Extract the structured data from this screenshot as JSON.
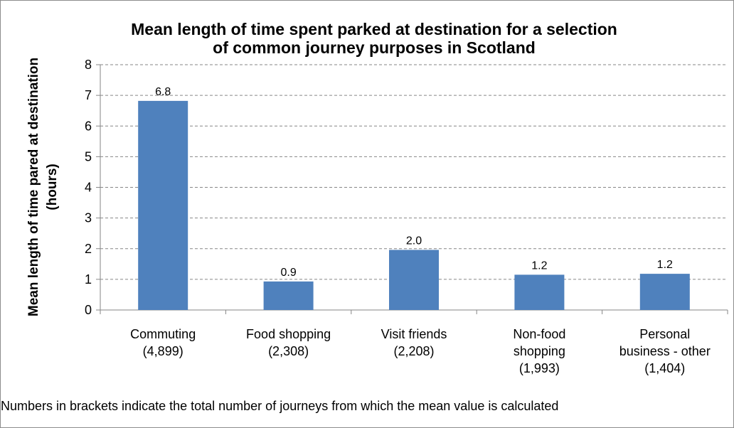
{
  "footnote": "Numbers in brackets indicate the total  number of journeys from which the mean value is calculated",
  "colors": {
    "bar": "#4f81bd",
    "grid": "#868686",
    "axis": "#868686",
    "text": "#000000"
  },
  "chart_data": {
    "type": "bar",
    "title": [
      "Mean length of time spent parked at destination for a selection",
      "of common journey purposes in Scotland"
    ],
    "ylabel": [
      "Mean length of time pared at destination",
      "(hours)"
    ],
    "xlabel": "",
    "ylim": [
      0,
      8
    ],
    "yticks": [
      0,
      1,
      2,
      3,
      4,
      5,
      6,
      7,
      8
    ],
    "grid": true,
    "legend": "none",
    "categories": [
      [
        "Commuting",
        "(4,899)"
      ],
      [
        "Food shopping",
        "(2,308)"
      ],
      [
        "Visit friends",
        "(2,208)"
      ],
      [
        "Non-food",
        "shopping",
        "(1,993)"
      ],
      [
        "Personal",
        "business - other",
        "(1,404)"
      ]
    ],
    "values": [
      6.82,
      0.93,
      1.96,
      1.15,
      1.18
    ],
    "data_labels": [
      "6.8",
      "0.9",
      "2.0",
      "1.2",
      "1.2"
    ]
  }
}
